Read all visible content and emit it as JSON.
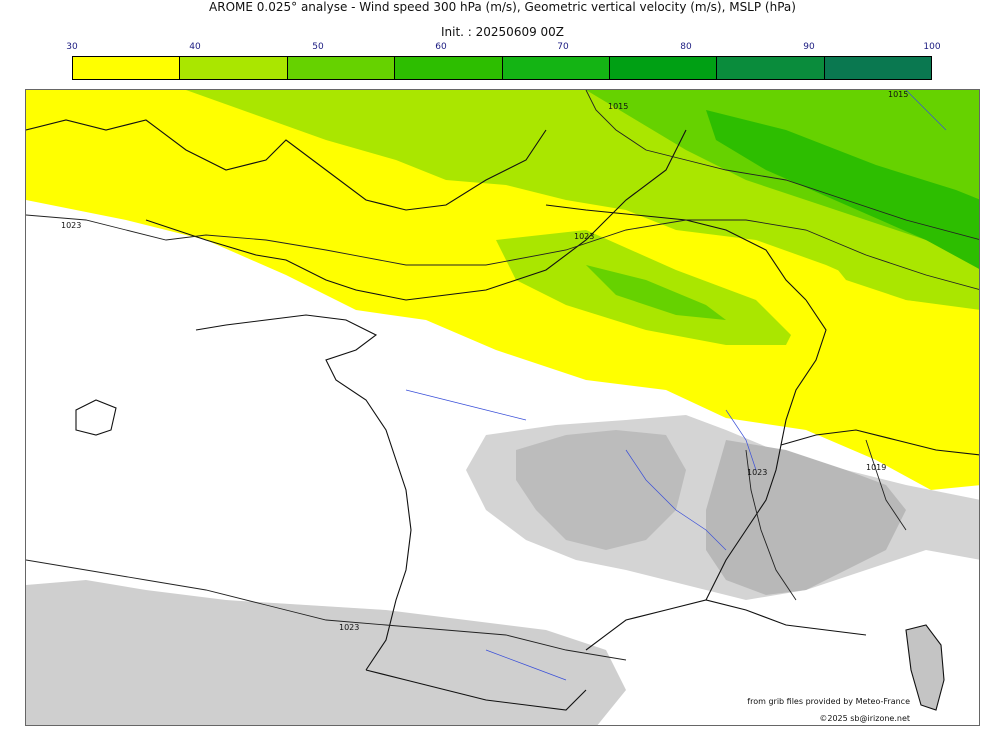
{
  "header": {
    "title": "AROME 0.025° analyse - Wind speed 300 hPa (m/s), Geometric vertical velocity (m/s), MSLP (hPa)",
    "init": "Init. : 20250609 00Z"
  },
  "colorbar": {
    "ticks": [
      "30",
      "40",
      "50",
      "60",
      "70",
      "80",
      "90",
      "100"
    ],
    "colors": [
      "#ffff00",
      "#aae600",
      "#66d200",
      "#2dbe00",
      "#14b414",
      "#00a014",
      "#0a8c3c",
      "#0a7850"
    ]
  },
  "map": {
    "isobar_labels": [
      "1015",
      "1015",
      "1023",
      "1023",
      "1023",
      "1023",
      "1019"
    ]
  },
  "footer": {
    "credit_source": "from grib files provided by Meteo-France",
    "credit_copyright": "©2025 sb@irizone.net"
  }
}
